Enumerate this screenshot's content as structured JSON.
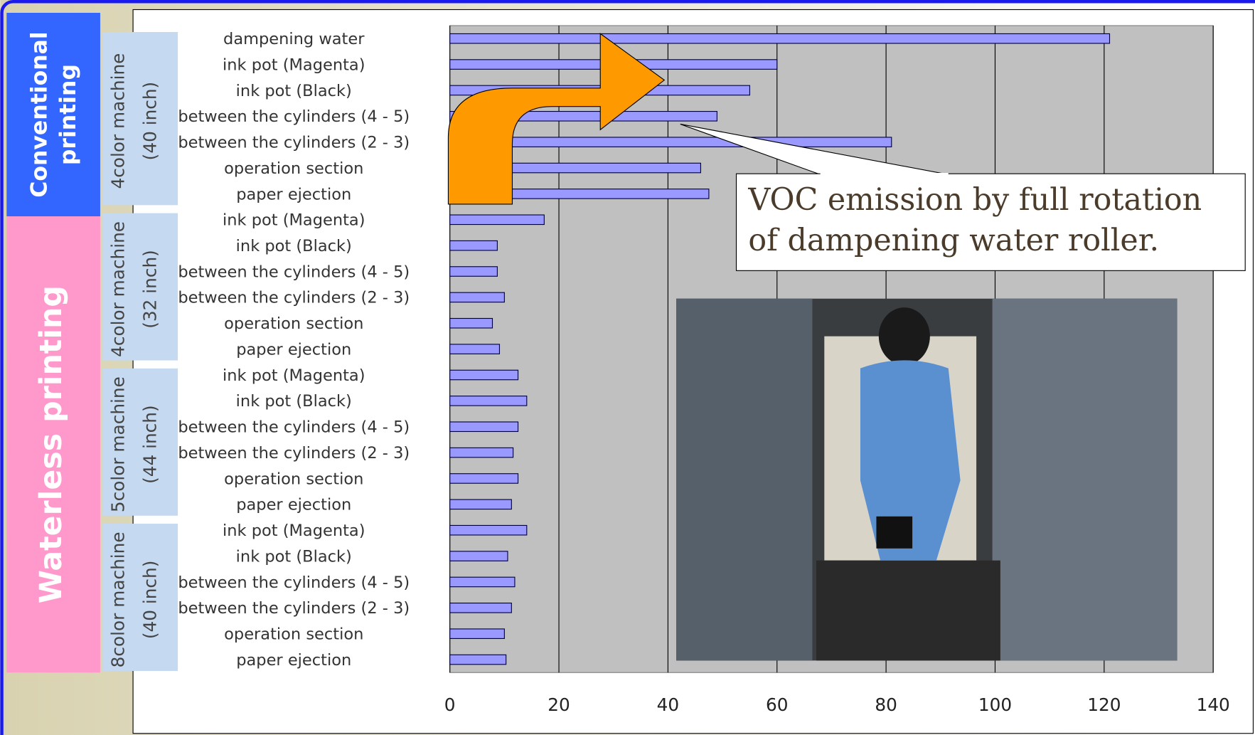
{
  "chart_data": {
    "type": "bar",
    "orientation": "horizontal",
    "categories": [
      "dampening water",
      "ink pot (Magenta)",
      "ink pot (Black)",
      "between the cylinders (4 - 5)",
      "between the cylinders (2 - 3)",
      "operation section",
      "paper ejection",
      "ink pot (Magenta)",
      "ink pot (Black)",
      "between the cylinders (4 - 5)",
      "between the cylinders (2 - 3)",
      "operation section",
      "paper ejection",
      "ink pot (Magenta)",
      "ink pot (Black)",
      "between the cylinders (4 - 5)",
      "between the cylinders (2 - 3)",
      "operation section",
      "paper ejection",
      "ink pot (Magenta)",
      "ink pot (Black)",
      "between the cylinders (4 - 5)",
      "between the cylinders (2 - 3)",
      "operation section",
      "paper ejection"
    ],
    "values": [
      121,
      60,
      55,
      49,
      81,
      46,
      47.5,
      17.3,
      8.7,
      8.7,
      10,
      7.8,
      9.1,
      12.5,
      14.1,
      12.5,
      11.6,
      12.5,
      11.3,
      14.1,
      10.6,
      11.9,
      11.3,
      10,
      10.3
    ],
    "color": "#9999ff",
    "xlim": [
      0,
      140
    ],
    "xticks": [
      0,
      20,
      40,
      60,
      80,
      100,
      120,
      140
    ],
    "grid": true,
    "groups": [
      {
        "lines": [
          "4color machine",
          "(40 inch)"
        ],
        "start": 0,
        "end": 6
      },
      {
        "lines": [
          "4color machine",
          "(32 inch)"
        ],
        "start": 7,
        "end": 12
      },
      {
        "lines": [
          "5color machine",
          "(44 inch)"
        ],
        "start": 13,
        "end": 18
      },
      {
        "lines": [
          "8color machine",
          "(40 inch)"
        ],
        "start": 19,
        "end": 24
      }
    ],
    "sections": [
      {
        "lines": [
          "Conventional",
          "printing"
        ],
        "color": "#3366ff"
      },
      {
        "lines": [
          "Waterless printing"
        ],
        "color": "#ff99cc"
      }
    ],
    "annotation": [
      "VOC emission by full rotation",
      "of dampening water roller."
    ]
  }
}
